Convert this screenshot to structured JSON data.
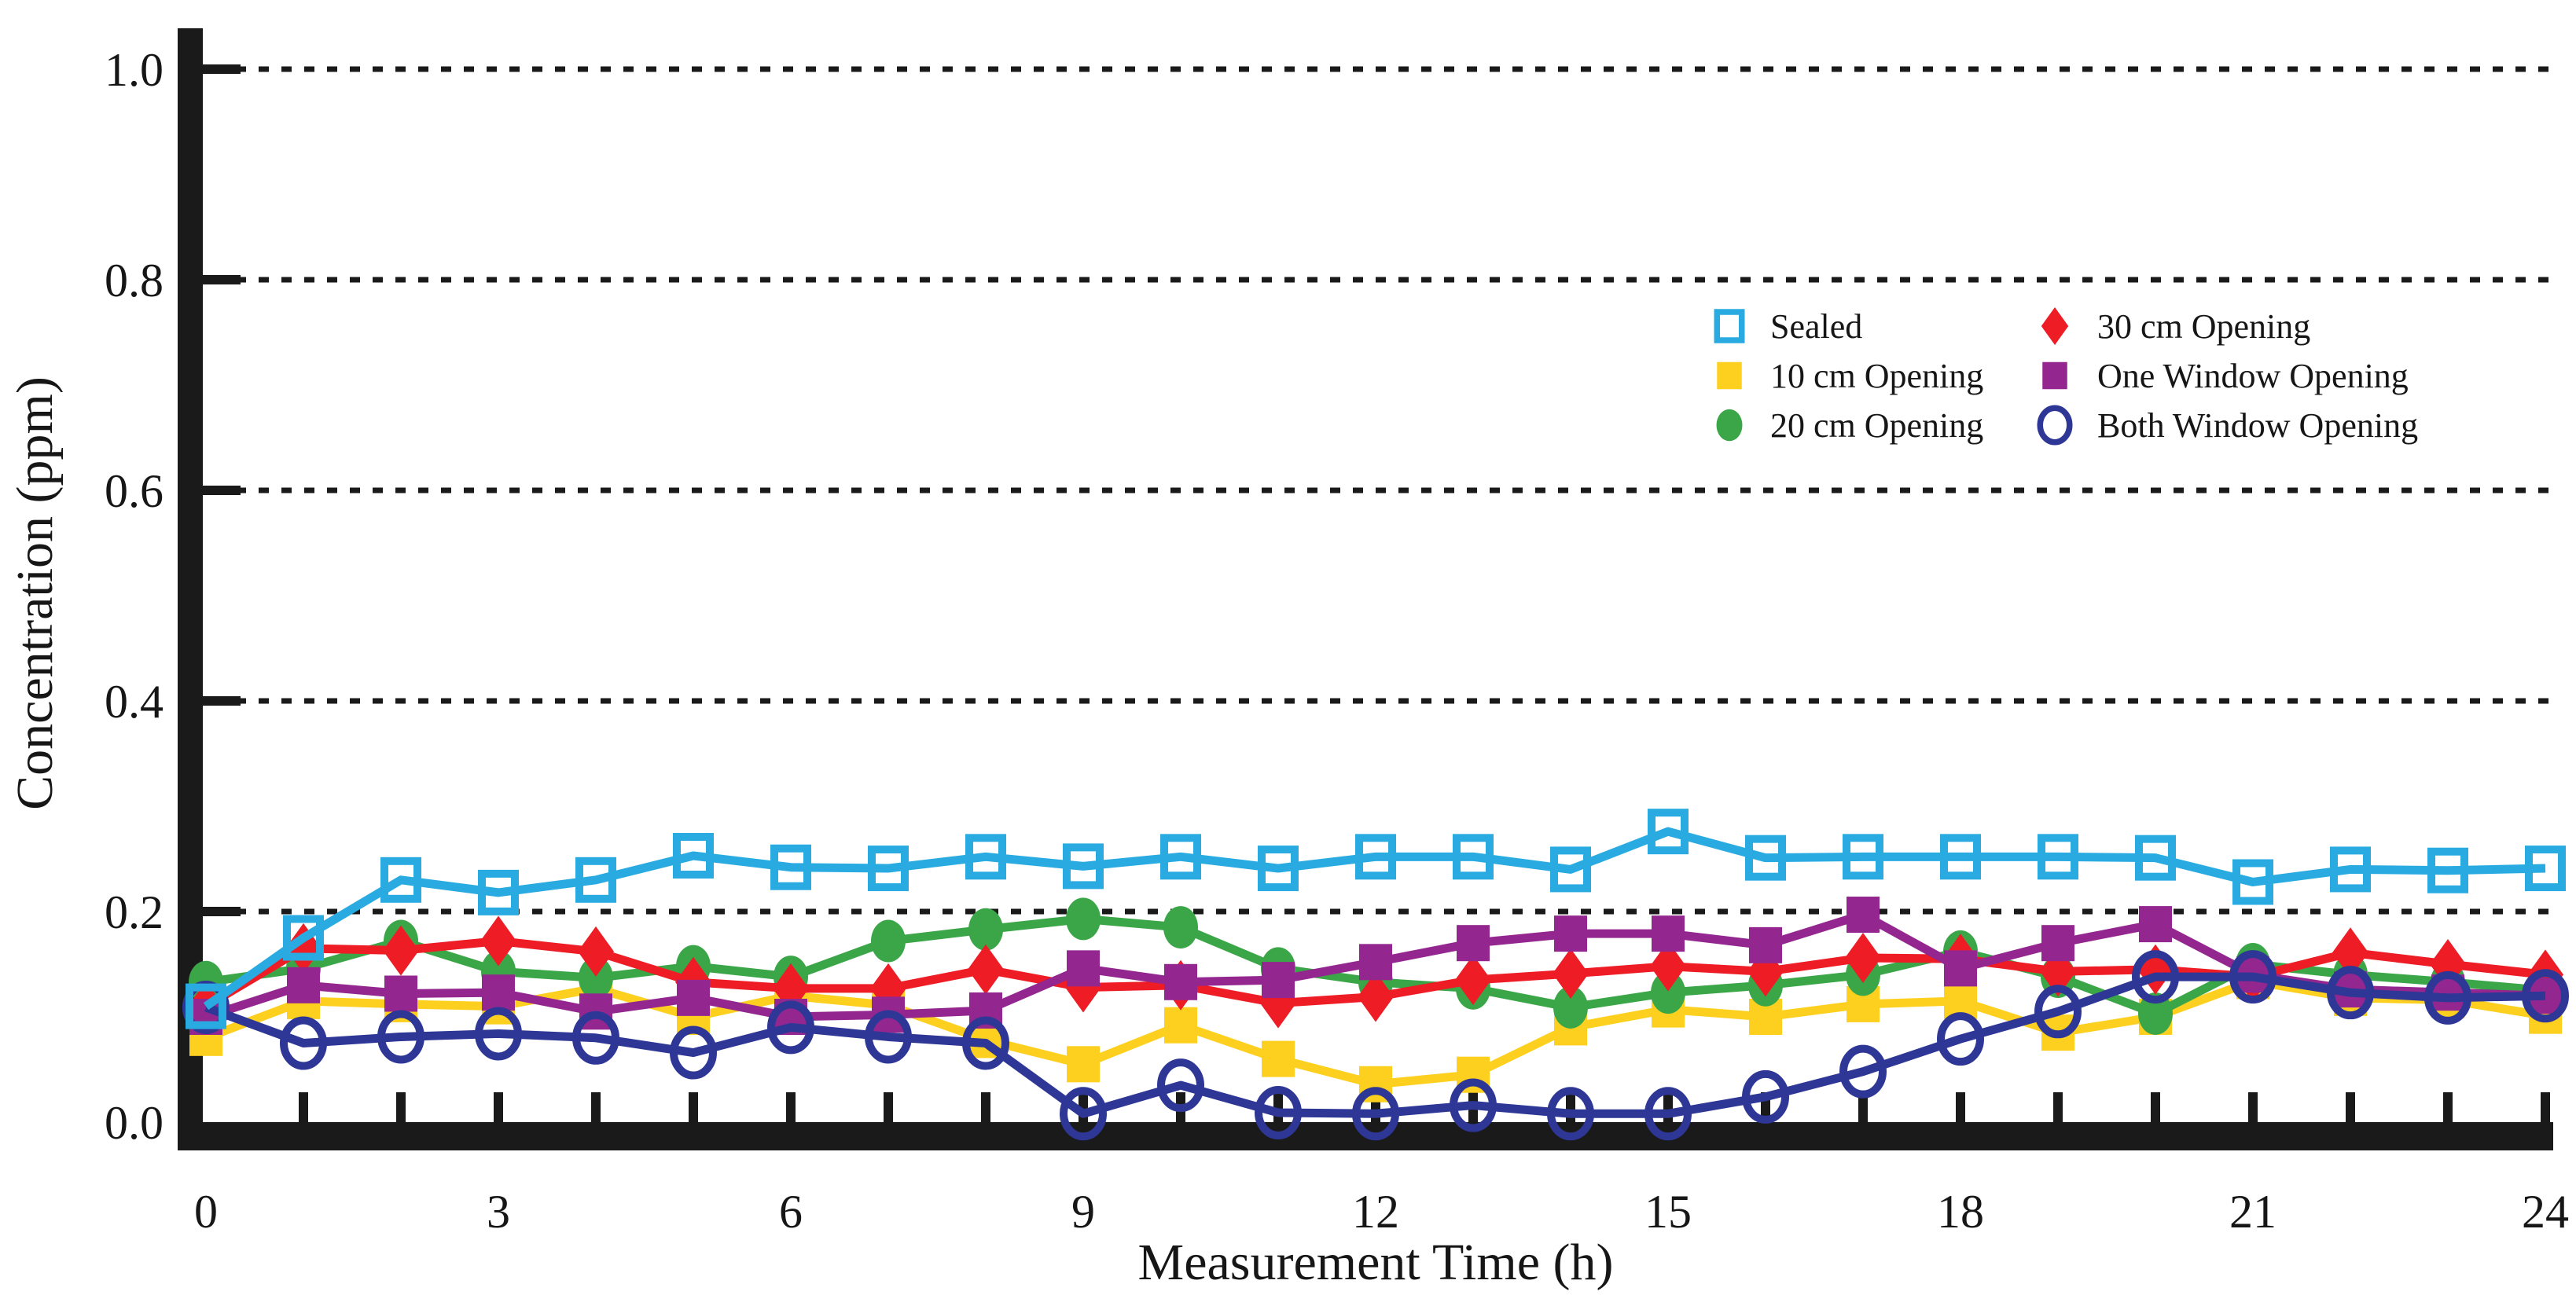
{
  "chart_data": {
    "type": "line",
    "title": "",
    "xlabel": "Measurement Time (h)",
    "ylabel": "Concentration (ppm)",
    "xlim": [
      0,
      24
    ],
    "ylim": [
      0.0,
      1.0
    ],
    "x_major_ticks": [
      0,
      3,
      6,
      9,
      12,
      15,
      18,
      21,
      24
    ],
    "x_minor_tick_step": 1,
    "y_ticks": [
      0.0,
      0.2,
      0.4,
      0.6,
      0.8,
      1.0
    ],
    "y_tick_labels": [
      "0.0",
      "0.2",
      "0.4",
      "0.6",
      "0.8",
      "1.0"
    ],
    "grid": "horizontal dotted lines at 0.2 intervals",
    "legend_position": "upper-right, two columns",
    "x": [
      0,
      1,
      2,
      3,
      4,
      5,
      6,
      7,
      8,
      9,
      10,
      11,
      12,
      13,
      14,
      15,
      16,
      17,
      18,
      19,
      20,
      21,
      22,
      23,
      24
    ],
    "series": [
      {
        "name": "Sealed",
        "color": "#29ABE2",
        "marker": "open-square",
        "values": [
          0.11,
          0.175,
          0.23,
          0.218,
          0.23,
          0.253,
          0.242,
          0.241,
          0.252,
          0.243,
          0.252,
          0.241,
          0.252,
          0.252,
          0.24,
          0.276,
          0.251,
          0.252,
          0.252,
          0.252,
          0.251,
          0.228,
          0.24,
          0.239,
          0.241
        ]
      },
      {
        "name": "10 cm Opening",
        "color": "#FDD020",
        "marker": "square",
        "values": [
          0.08,
          0.115,
          0.112,
          0.11,
          0.127,
          0.1,
          0.12,
          0.111,
          0.078,
          0.055,
          0.092,
          0.06,
          0.036,
          0.045,
          0.09,
          0.107,
          0.1,
          0.112,
          0.115,
          0.085,
          0.1,
          0.134,
          0.118,
          0.116,
          0.101
        ]
      },
      {
        "name": "20 cm Opening",
        "color": "#3BA648",
        "marker": "circle",
        "values": [
          0.133,
          0.146,
          0.172,
          0.143,
          0.137,
          0.148,
          0.138,
          0.172,
          0.183,
          0.193,
          0.185,
          0.146,
          0.133,
          0.127,
          0.109,
          0.123,
          0.13,
          0.14,
          0.162,
          0.138,
          0.103,
          0.15,
          0.14,
          0.133,
          0.125
        ]
      },
      {
        "name": "30 cm Opening",
        "color": "#EE1C25",
        "marker": "diamond",
        "values": [
          0.11,
          0.165,
          0.163,
          0.172,
          0.162,
          0.133,
          0.127,
          0.127,
          0.145,
          0.128,
          0.13,
          0.113,
          0.119,
          0.135,
          0.141,
          0.148,
          0.143,
          0.156,
          0.155,
          0.143,
          0.145,
          0.138,
          0.161,
          0.15,
          0.14
        ]
      },
      {
        "name": "One Window Opening",
        "color": "#93278F",
        "marker": "square",
        "values": [
          0.1,
          0.13,
          0.122,
          0.123,
          0.105,
          0.118,
          0.1,
          0.102,
          0.106,
          0.146,
          0.133,
          0.135,
          0.152,
          0.17,
          0.179,
          0.179,
          0.168,
          0.197,
          0.146,
          0.17,
          0.188,
          0.14,
          0.126,
          0.123,
          0.12
        ]
      },
      {
        "name": "Both Window Opening",
        "color": "#2E3796",
        "marker": "open-circle",
        "values": [
          0.109,
          0.075,
          0.081,
          0.084,
          0.08,
          0.066,
          0.09,
          0.081,
          0.075,
          0.008,
          0.035,
          0.009,
          0.008,
          0.016,
          0.008,
          0.008,
          0.024,
          0.048,
          0.079,
          0.105,
          0.138,
          0.138,
          0.123,
          0.118,
          0.12
        ]
      }
    ]
  }
}
